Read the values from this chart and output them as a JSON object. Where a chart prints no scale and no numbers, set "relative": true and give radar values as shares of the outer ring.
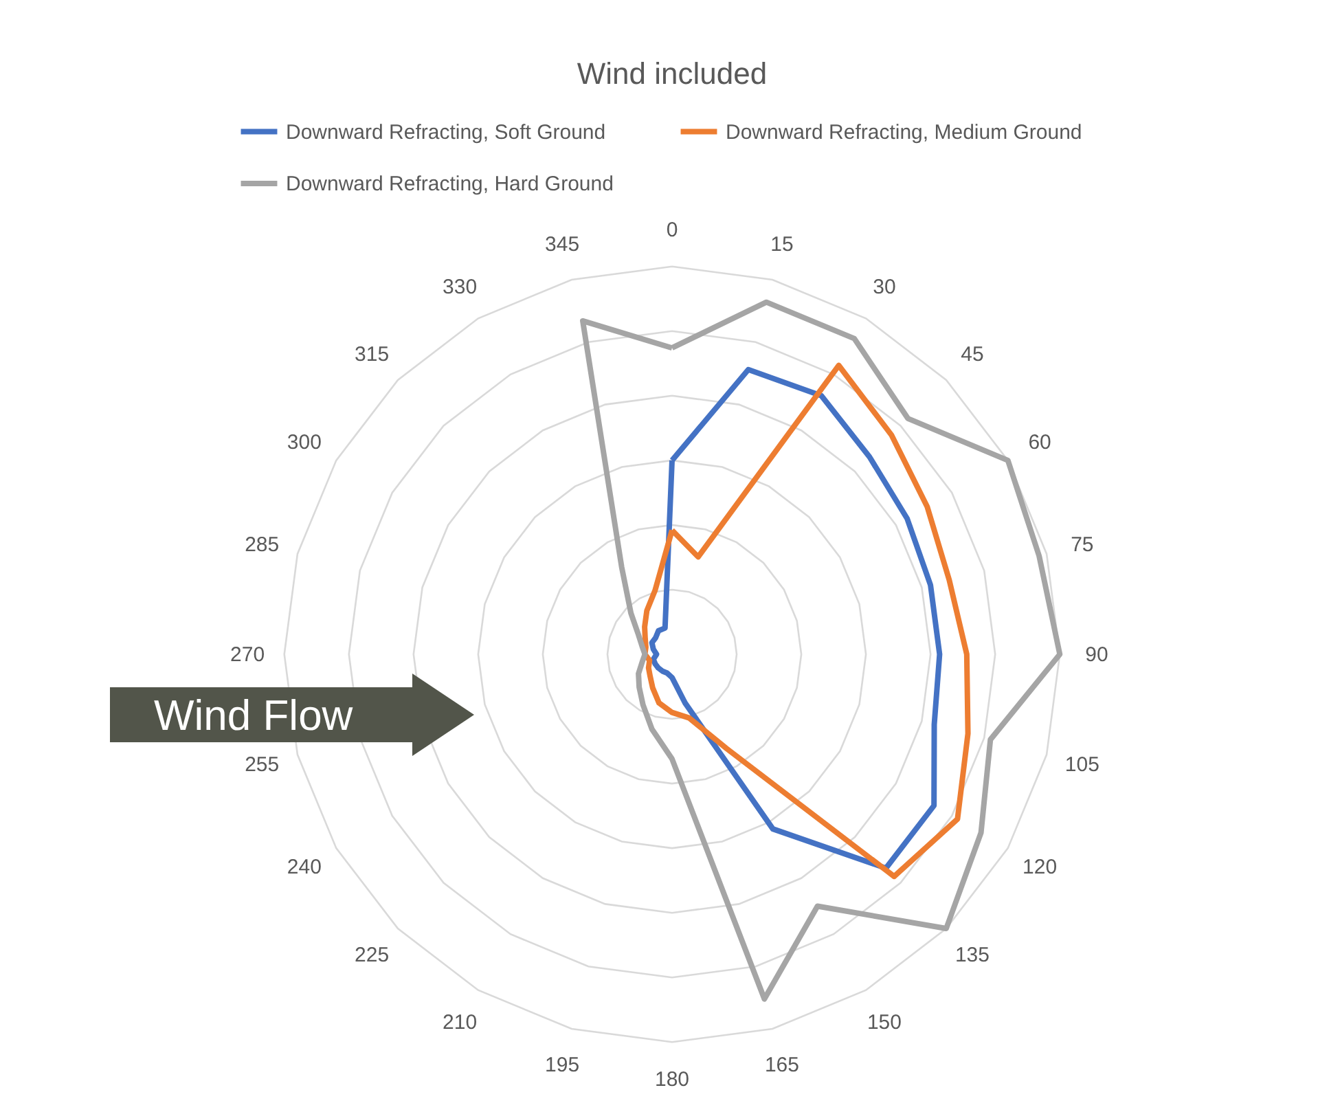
{
  "chart_data": {
    "type": "radar",
    "title": "Wind included",
    "relative": true,
    "grid": true,
    "legend": "top",
    "categories": [
      "0",
      "15",
      "30",
      "45",
      "60",
      "75",
      "90",
      "105",
      "120",
      "135",
      "150",
      "165",
      "180",
      "195",
      "210",
      "225",
      "240",
      "255",
      "270",
      "285",
      "300",
      "315",
      "330",
      "345"
    ],
    "series": [
      {
        "name": "Downward Refracting, Soft Ground",
        "color": "#4472c4",
        "values": [
          0.5,
          0.76,
          0.77,
          0.72,
          0.7,
          0.69,
          0.69,
          0.7,
          0.78,
          0.78,
          0.52,
          0.13,
          0.06,
          0.05,
          0.05,
          0.05,
          0.05,
          0.05,
          0.04,
          0.05,
          0.06,
          0.06,
          0.07,
          0.07
        ]
      },
      {
        "name": "Downward Refracting, Medium Ground",
        "color": "#ed7d31",
        "values": [
          0.32,
          0.26,
          0.86,
          0.8,
          0.76,
          0.74,
          0.76,
          0.79,
          0.85,
          0.81,
          0.28,
          0.17,
          0.15,
          0.13,
          0.1,
          0.08,
          0.07,
          0.06,
          0.07,
          0.07,
          0.08,
          0.1,
          0.13,
          0.17
        ]
      },
      {
        "name": "Downward Refracting, Hard Ground",
        "color": "#a5a5a5",
        "values": [
          0.79,
          0.94,
          0.94,
          0.86,
          1,
          0.98,
          1,
          0.85,
          0.92,
          1,
          0.75,
          0.92,
          0.27,
          0.2,
          0.15,
          0.12,
          0.1,
          0.08,
          0.07,
          0.08,
          0.1,
          0.15,
          0.26,
          0.89
        ]
      }
    ],
    "annotations": [
      "Wind Flow"
    ]
  }
}
